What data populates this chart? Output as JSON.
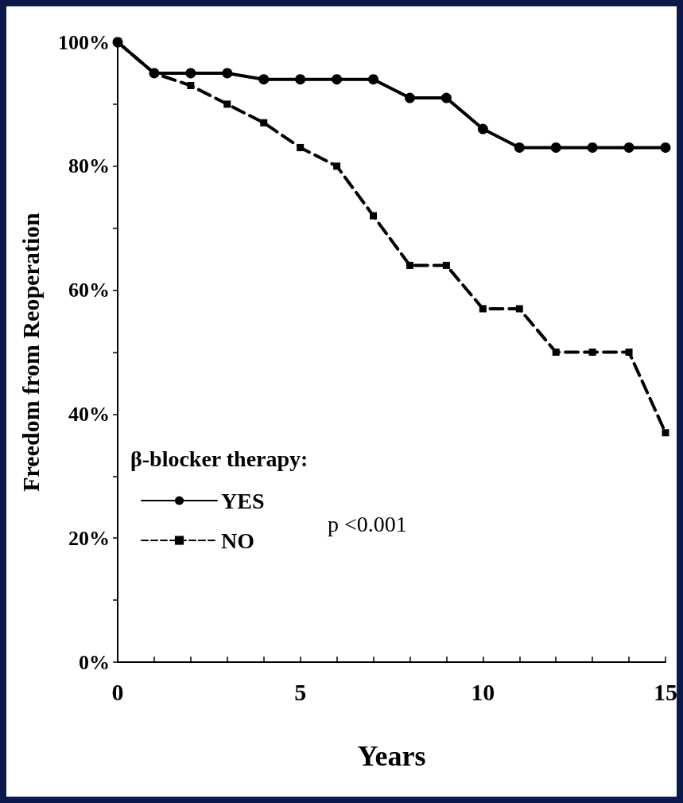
{
  "chart_data": {
    "type": "line",
    "xlabel": "Years",
    "ylabel": "Freedom from Reoperation",
    "legend_title": "β-blocker therapy:",
    "x": [
      0,
      1,
      2,
      3,
      4,
      5,
      6,
      7,
      8,
      9,
      10,
      11,
      12,
      13,
      14,
      15
    ],
    "series": [
      {
        "name": "YES",
        "color": "#000000",
        "marker": "circle",
        "line_style": "solid",
        "values": [
          100,
          95,
          95,
          95,
          94,
          94,
          94,
          94,
          91,
          91,
          86,
          83,
          83,
          83,
          83,
          83
        ]
      },
      {
        "name": "NO",
        "color": "#000000",
        "marker": "square",
        "line_style": "dashed",
        "values": [
          100,
          95,
          93,
          90,
          87,
          83,
          80,
          72,
          64,
          64,
          57,
          57,
          50,
          50,
          50,
          37
        ]
      }
    ],
    "xlim": [
      0,
      15
    ],
    "xticks": [
      0,
      {
        "value": 1,
        "label": null
      },
      {
        "value": 2,
        "label": null
      },
      {
        "value": 3,
        "label": null
      },
      {
        "value": 4,
        "label": null
      },
      5,
      {
        "value": 6,
        "label": null
      },
      {
        "value": 7,
        "label": null
      },
      {
        "value": 8,
        "label": null
      },
      {
        "value": 9,
        "label": null
      },
      10,
      {
        "value": 11,
        "label": null
      },
      {
        "value": 12,
        "label": null
      },
      {
        "value": 13,
        "label": null
      },
      {
        "value": 14,
        "label": null
      },
      15
    ],
    "ylim": [
      0,
      100
    ],
    "yticks": [
      {
        "value": 0,
        "label": "0%"
      },
      {
        "value": 10,
        "label": null
      },
      {
        "value": 20,
        "label": "20%"
      },
      {
        "value": 30,
        "label": null
      },
      {
        "value": 40,
        "label": "40%"
      },
      {
        "value": 50,
        "label": null
      },
      {
        "value": 60,
        "label": "60%"
      },
      {
        "value": 70,
        "label": null
      },
      {
        "value": 80,
        "label": "80%"
      },
      {
        "value": 90,
        "label": null
      },
      {
        "value": 100,
        "label": "100%"
      }
    ],
    "annotations": [
      "p <0.001"
    ],
    "grid": false,
    "legend": "bottom left"
  }
}
